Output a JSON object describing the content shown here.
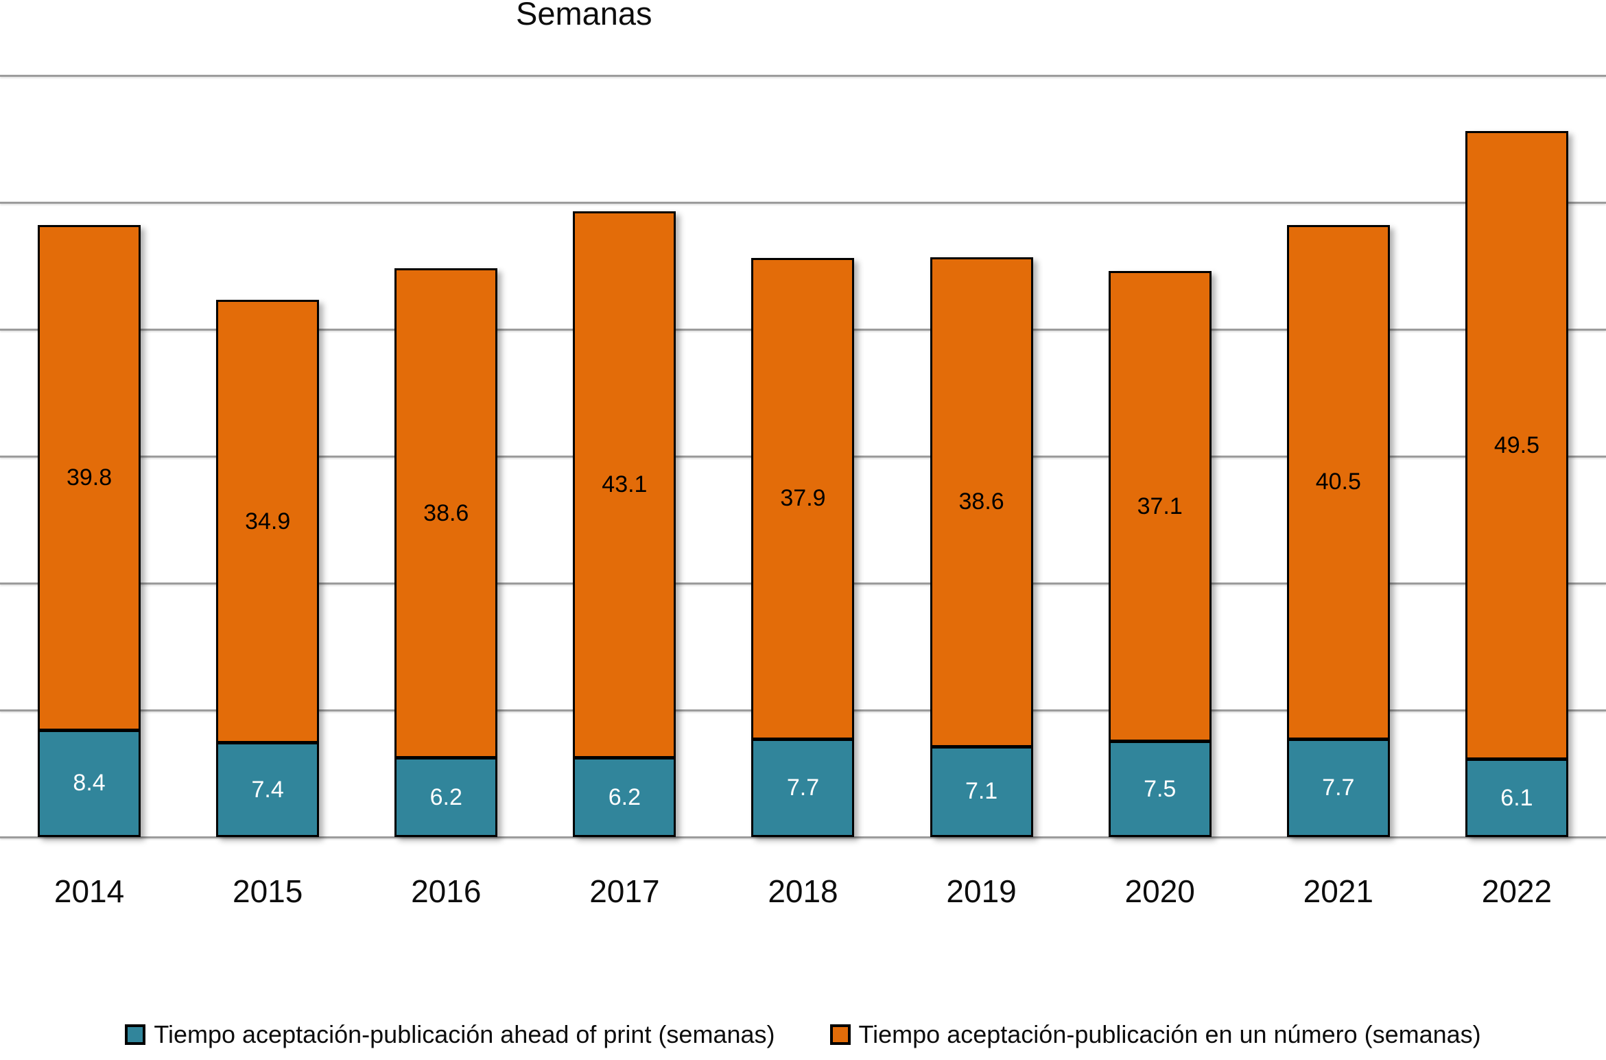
{
  "chart_data": {
    "type": "bar",
    "stacked": true,
    "title": "Semanas",
    "xlabel": "",
    "ylabel": "",
    "categories": [
      "2014",
      "2015",
      "2016",
      "2017",
      "2018",
      "2019",
      "2020",
      "2021",
      "2022"
    ],
    "series": [
      {
        "name": "Tiempo aceptación-publicación ahead of print (semanas)",
        "color": "#31859B",
        "label_color": "#FFFFFF",
        "values": [
          8.4,
          7.4,
          6.2,
          6.2,
          7.7,
          7.1,
          7.5,
          7.7,
          6.1
        ]
      },
      {
        "name": "Tiempo aceptación-publicación en un número (semanas)",
        "color": "#E36C09",
        "label_color": "#000000",
        "values": [
          39.8,
          34.9,
          38.6,
          43.1,
          37.9,
          38.6,
          37.1,
          40.5,
          49.5
        ]
      }
    ],
    "ylim": [
      0,
      60
    ],
    "gridline_step": 10,
    "grid": true,
    "y_tick_labels_visible": false,
    "legend_position": "bottom"
  },
  "colors": {
    "background": "#FFFFFF",
    "gridline": "#9C9C9C",
    "bar_border": "#000000",
    "teal": "#31859B",
    "orange": "#E36C09"
  }
}
